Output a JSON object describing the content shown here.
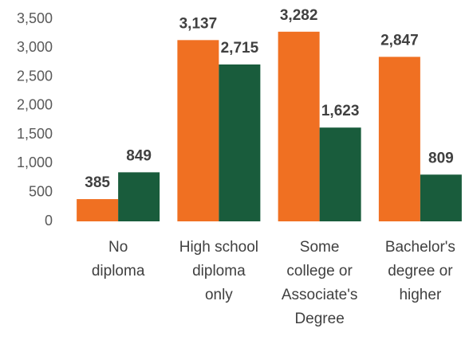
{
  "chart_data": {
    "type": "bar",
    "categories": [
      [
        "No",
        "diploma"
      ],
      [
        "High school",
        "diploma",
        "only"
      ],
      [
        "Some",
        "college or",
        "Associate's",
        "Degree"
      ],
      [
        "Bachelor's",
        "degree or",
        "higher"
      ]
    ],
    "series": [
      {
        "color": "#f07022",
        "values": [
          385,
          3137,
          3282,
          2847
        ],
        "value_labels": [
          "385",
          "3,137",
          "3,282",
          "2,847"
        ]
      },
      {
        "color": "#195c3c",
        "values": [
          849,
          2715,
          1623,
          809
        ],
        "value_labels": [
          "849",
          "2,715",
          "1,623",
          "809"
        ]
      }
    ],
    "ylim": [
      0,
      3500
    ],
    "yticks": [
      0,
      500,
      {
        "value": 1000,
        "label": "1,000"
      },
      {
        "value": 1500,
        "label": "1,500"
      },
      {
        "value": 2000,
        "label": "2,000"
      },
      {
        "value": 2500,
        "label": "2,500"
      },
      {
        "value": 3000,
        "label": "3,000"
      },
      {
        "value": 3500,
        "label": "3,500"
      }
    ],
    "grid": false
  }
}
